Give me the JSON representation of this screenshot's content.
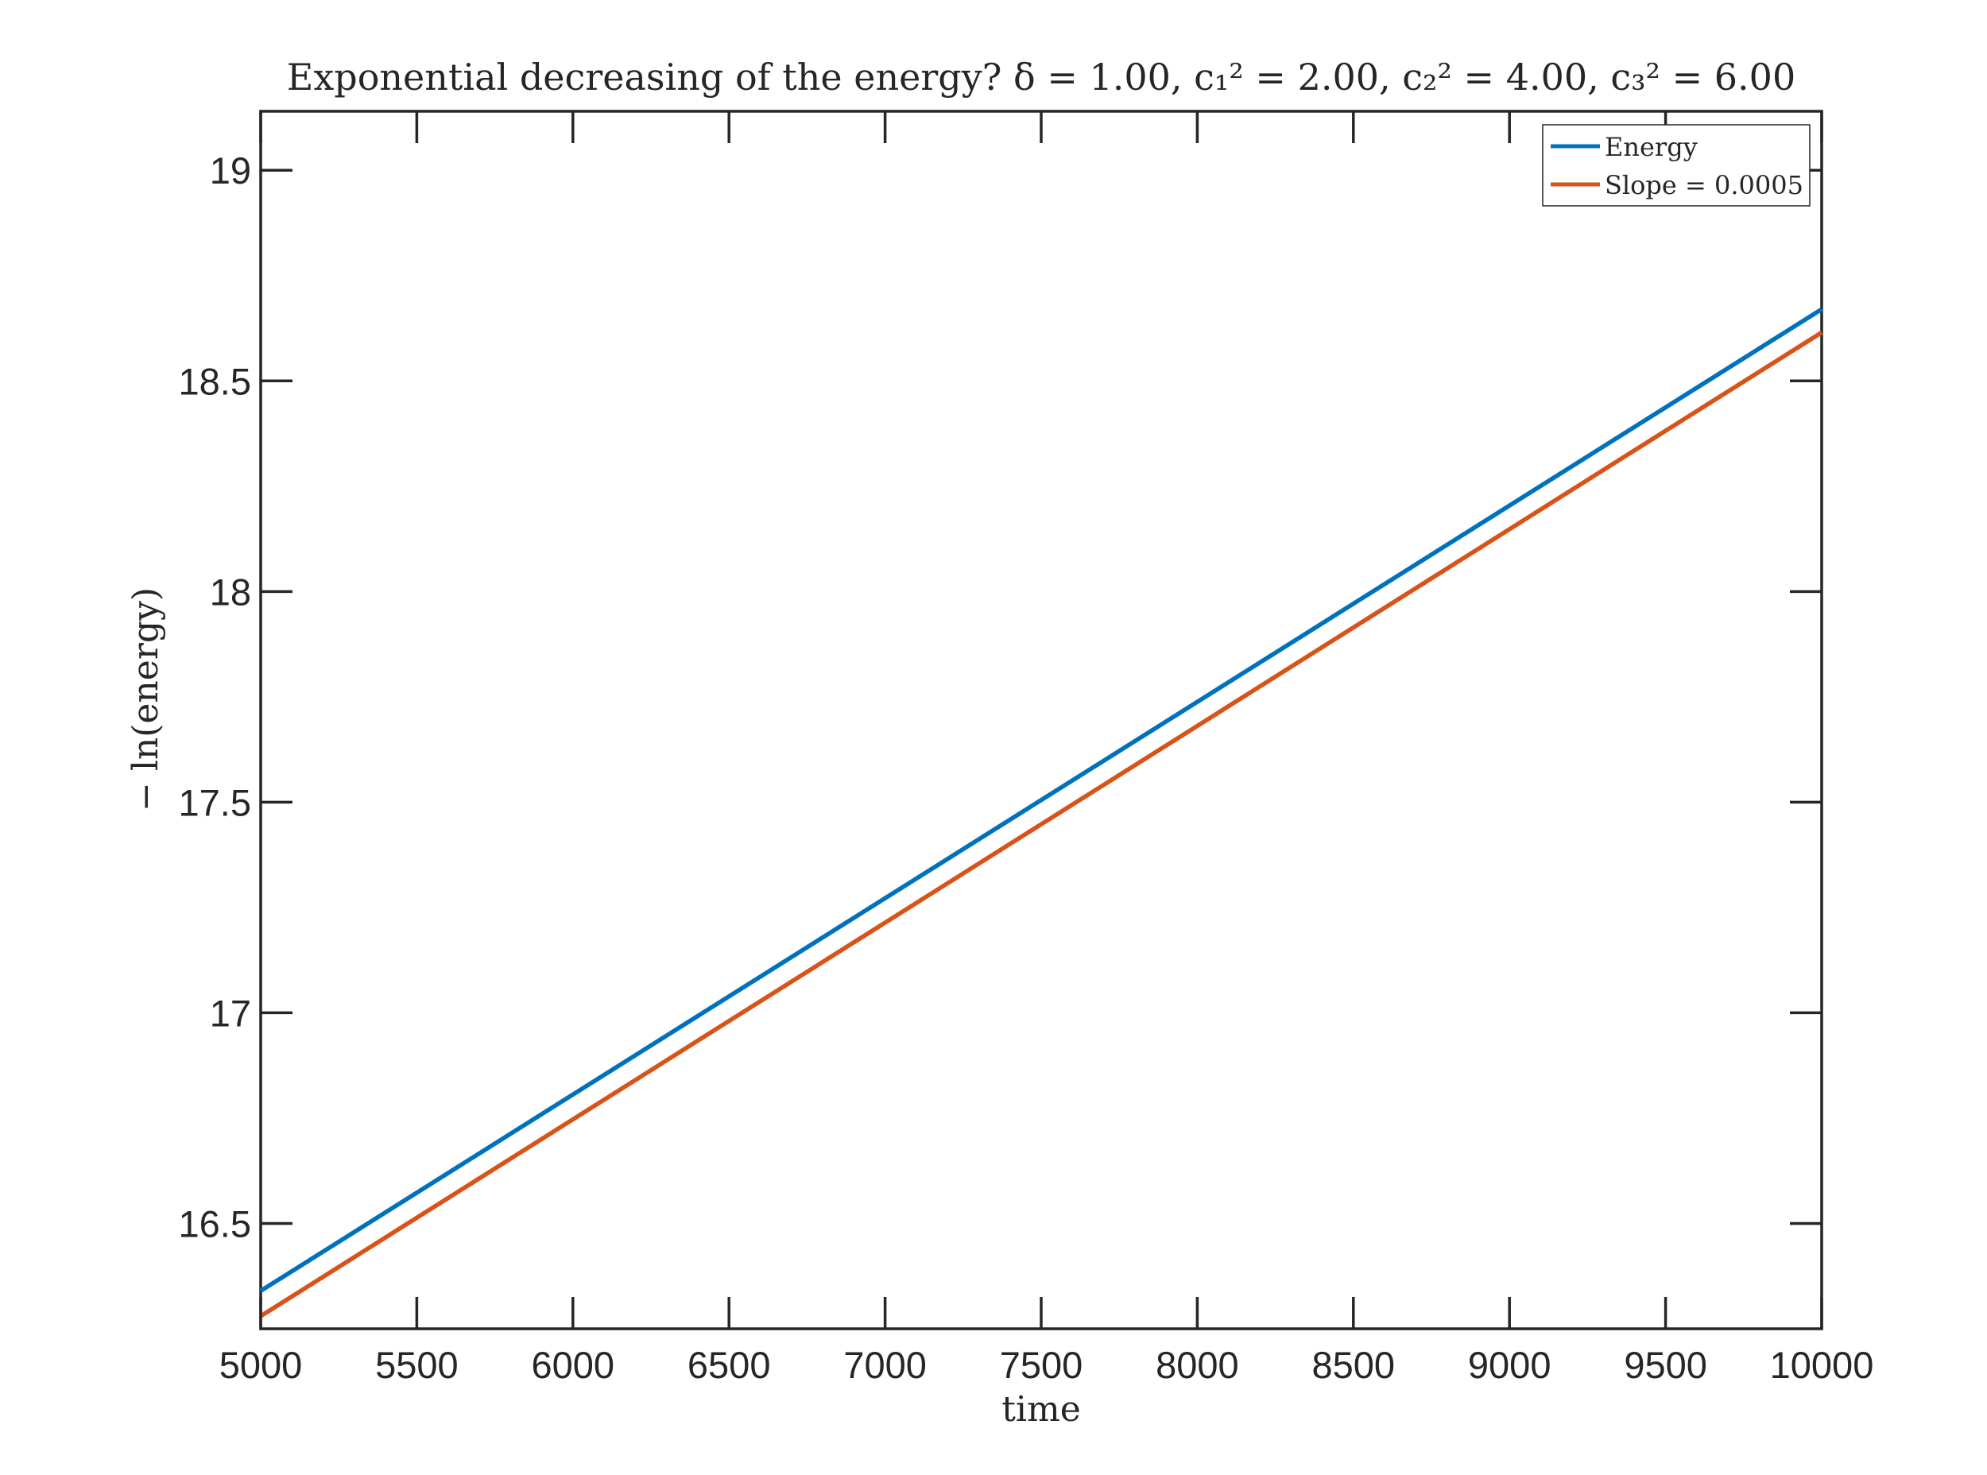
{
  "chart_data": {
    "type": "line",
    "title": "Exponential decreasing of the energy? δ = 1.00, c₁² = 2.00, c₂² = 4.00, c₃² = 6.00",
    "xlabel": "time",
    "ylabel": "− ln(energy)",
    "xlim": [
      5000,
      10000
    ],
    "ylim": [
      16.25,
      19.14
    ],
    "x_ticks": [
      5000,
      5500,
      6000,
      6500,
      7000,
      7500,
      8000,
      8500,
      9000,
      9500,
      10000
    ],
    "x_tick_labels": [
      "5000",
      "5500",
      "6000",
      "6500",
      "7000",
      "7500",
      "8000",
      "8500",
      "9000",
      "9500",
      "10000"
    ],
    "y_ticks": [
      16.5,
      17,
      17.5,
      18,
      18.5,
      19
    ],
    "y_tick_labels": [
      "16.5",
      "17",
      "17.5",
      "18",
      "18.5",
      "19"
    ],
    "grid": false,
    "legend_position": "top-right",
    "series": [
      {
        "name": "Energy",
        "color": "#0072BD",
        "x": [
          5000,
          10000
        ],
        "y": [
          16.34,
          18.67
        ]
      },
      {
        "name": "Slope = 0.0005",
        "color": "#D95319",
        "x": [
          5000,
          10000
        ],
        "y": [
          16.28,
          18.615
        ]
      }
    ]
  }
}
